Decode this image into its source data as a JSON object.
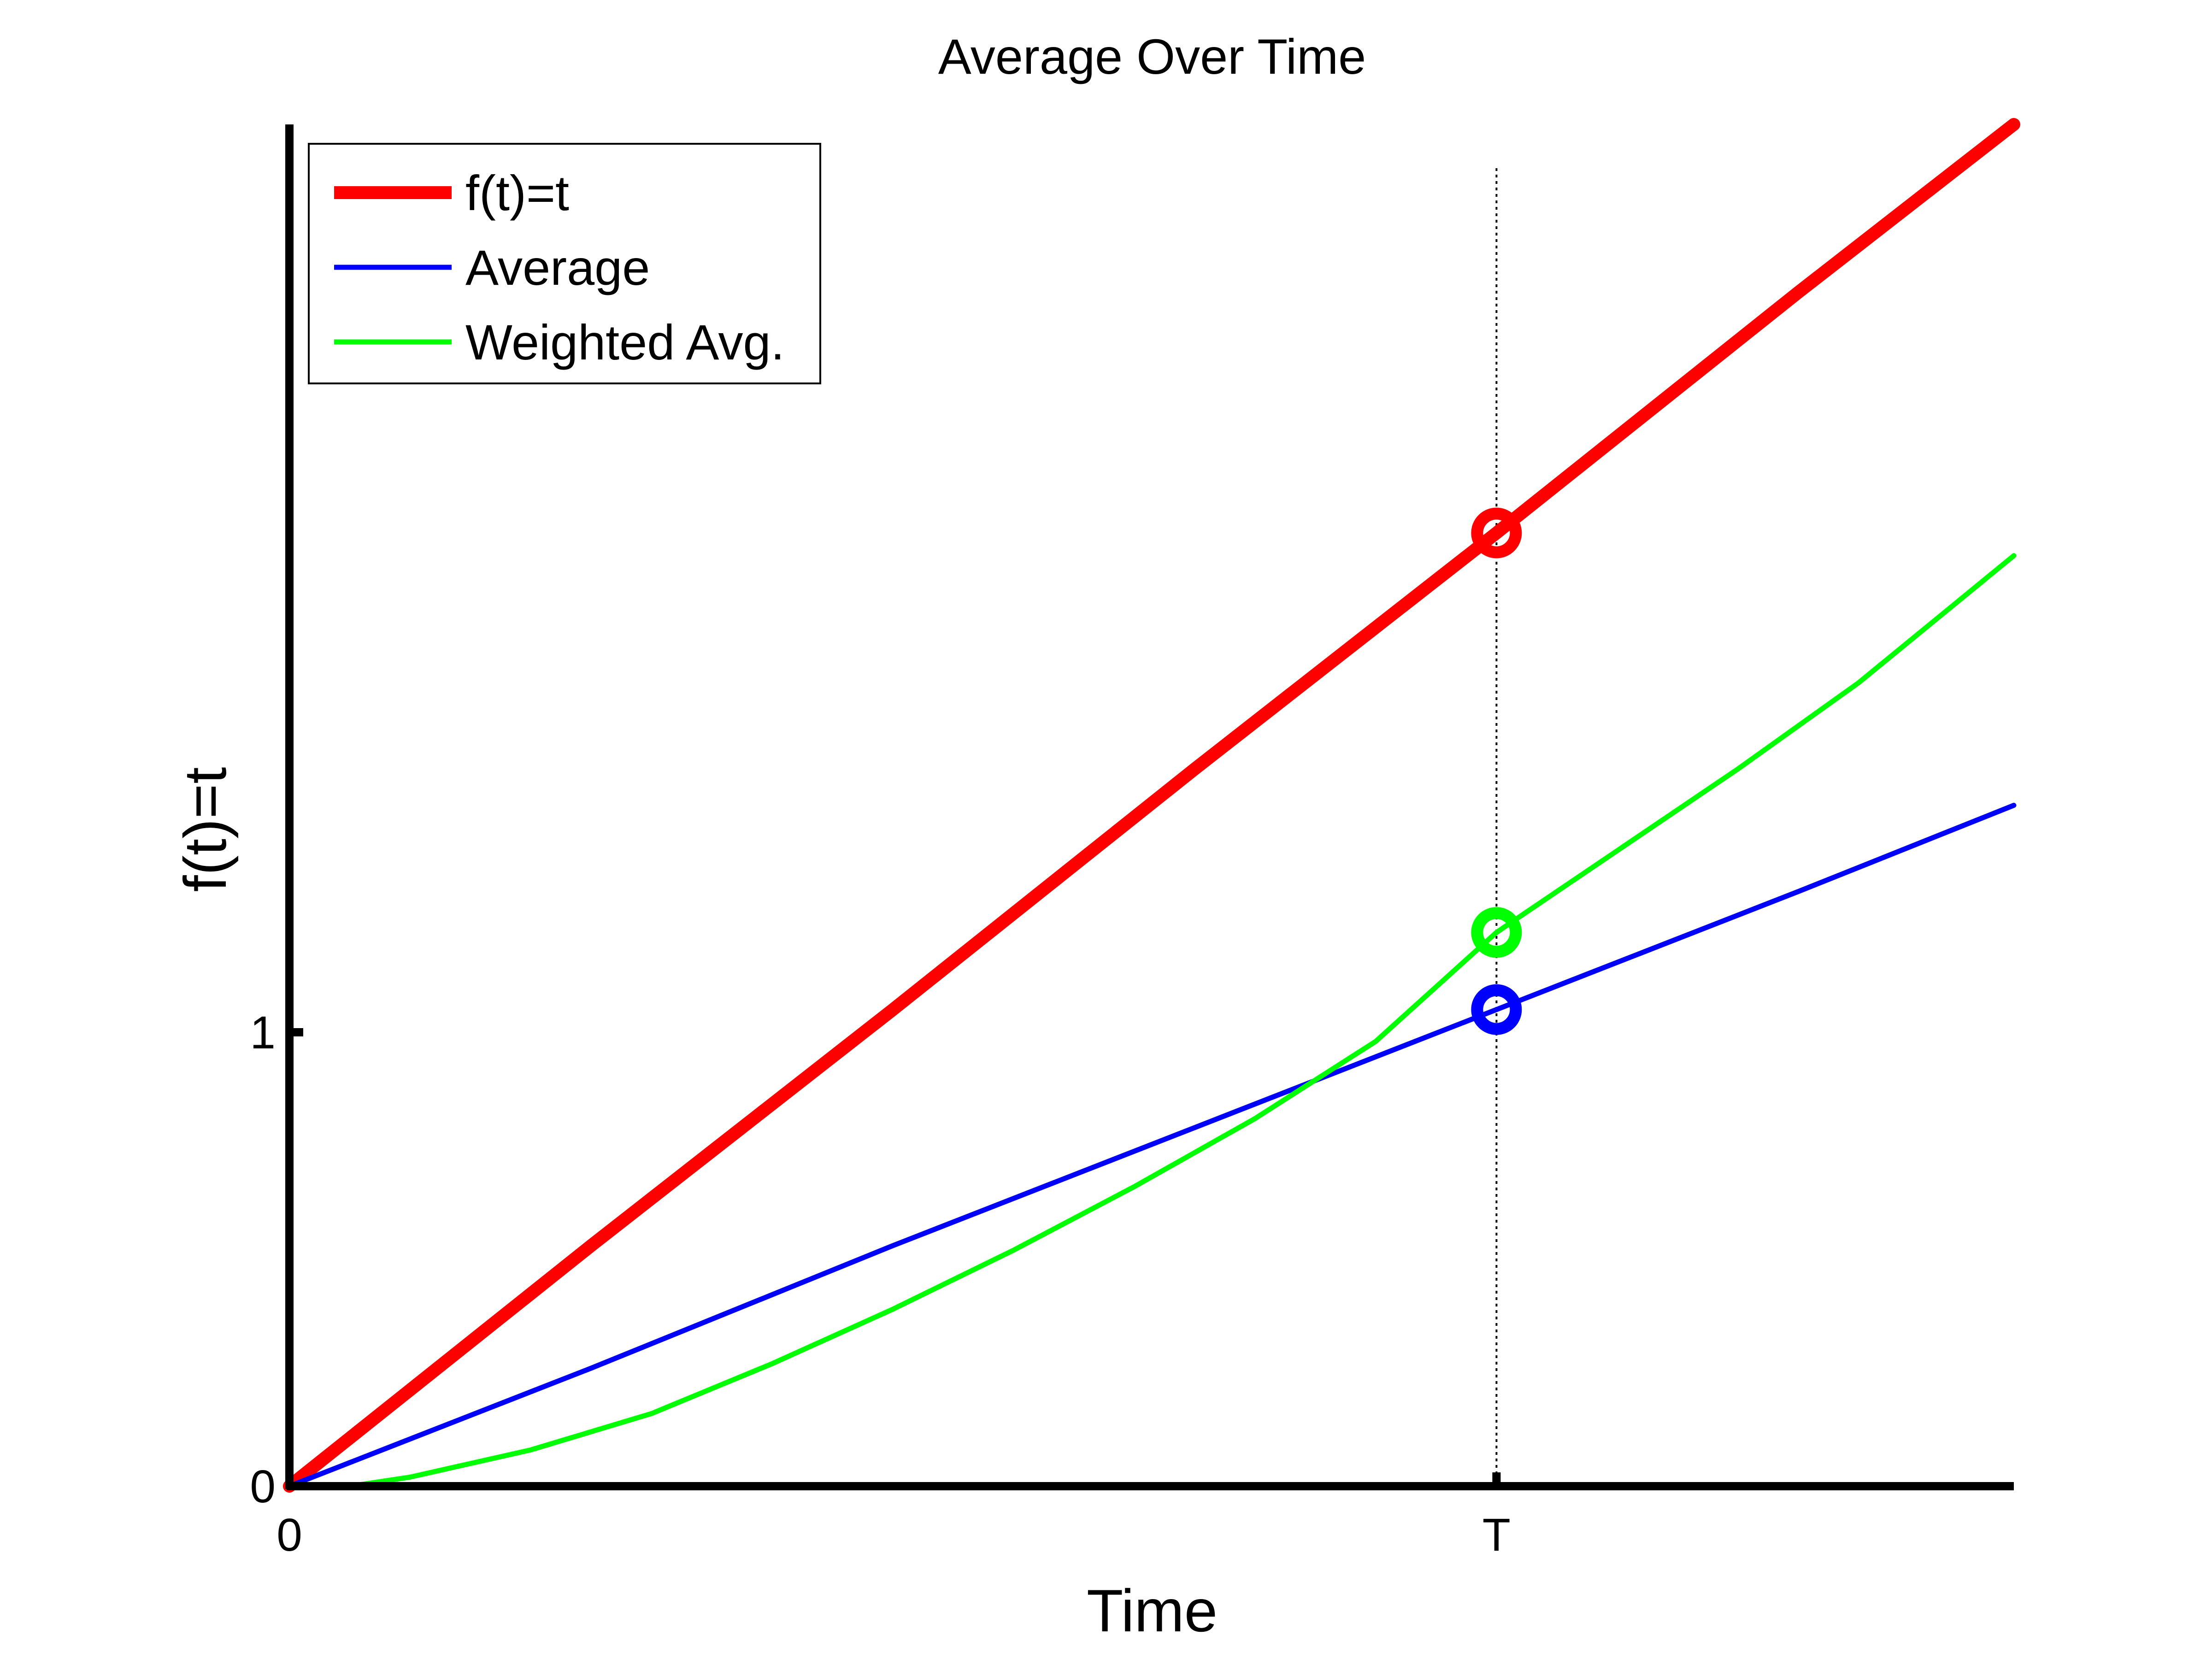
{
  "chart_data": {
    "type": "line",
    "title": "Average Over Time",
    "xlabel": "Time",
    "ylabel": "f(t)=t",
    "xlim": [
      0,
      1.4286
    ],
    "ylim": [
      0,
      3
    ],
    "x_ticks": [
      {
        "value": 0,
        "label": "0"
      },
      {
        "value": 1,
        "label": "T"
      }
    ],
    "y_ticks": [
      {
        "value": 0,
        "label": "0"
      },
      {
        "value": 1,
        "label": "1"
      }
    ],
    "grid": false,
    "legend_position": "top-left",
    "reference_line": {
      "x": 1,
      "label": "T",
      "style": "dotted"
    },
    "series": [
      {
        "name": "f(t)=t",
        "color": "#ff0000",
        "x": [
          0,
          0.25,
          0.5,
          0.75,
          1.0,
          1.25,
          1.4286
        ],
        "y": [
          0,
          0.53,
          1.05,
          1.58,
          2.1,
          2.63,
          3.0
        ],
        "marker_at": {
          "x": 1.0,
          "y": 2.1
        }
      },
      {
        "name": "Average",
        "color": "#0000ff",
        "x": [
          0,
          0.25,
          0.5,
          0.75,
          1.0,
          1.25,
          1.4286
        ],
        "y": [
          0,
          0.26,
          0.53,
          0.79,
          1.05,
          1.31,
          1.5
        ],
        "marker_at": {
          "x": 1.0,
          "y": 1.05
        }
      },
      {
        "name": "Weighted Avg.",
        "color": "#00ff00",
        "x": [
          0,
          0.05,
          0.1,
          0.2,
          0.3,
          0.4,
          0.5,
          0.6,
          0.7,
          0.8,
          0.9,
          1.0,
          1.1,
          1.2,
          1.3,
          1.4286
        ],
        "y": [
          0,
          0.0,
          0.02,
          0.08,
          0.16,
          0.27,
          0.39,
          0.52,
          0.66,
          0.81,
          0.98,
          1.22,
          1.4,
          1.58,
          1.77,
          2.05
        ],
        "marker_at": {
          "x": 1.0,
          "y": 1.22
        }
      }
    ]
  }
}
